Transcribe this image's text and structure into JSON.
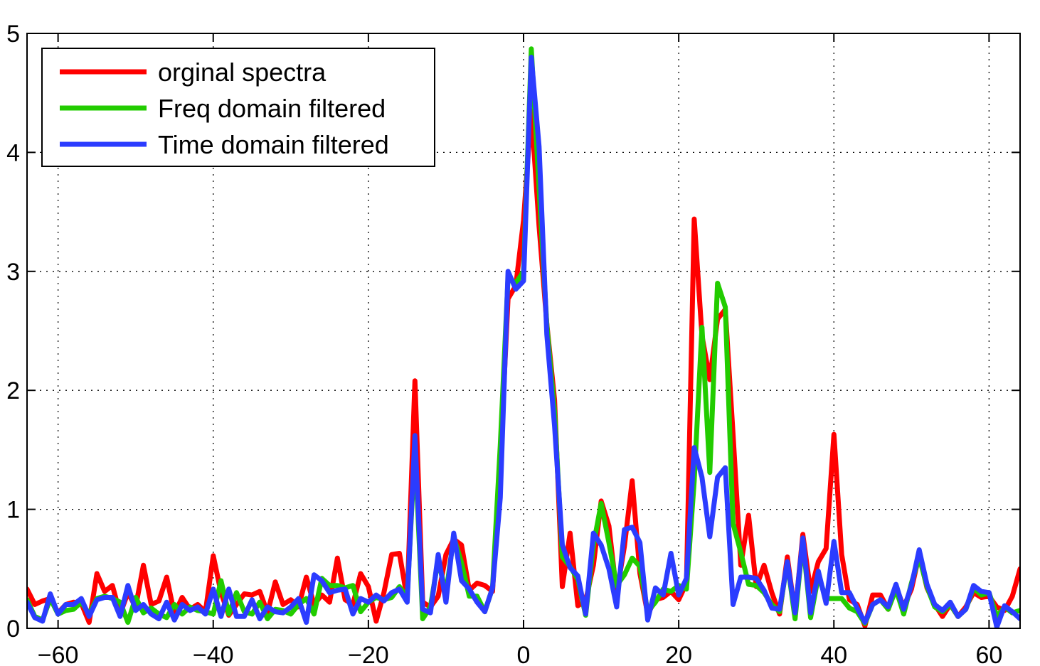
{
  "chart_data": {
    "type": "line",
    "title": "",
    "xlabel": "",
    "ylabel": "",
    "xlim": [
      -64,
      64
    ],
    "ylim": [
      0,
      5
    ],
    "xticks": [
      -60,
      -40,
      -20,
      0,
      20,
      40,
      60
    ],
    "xtick_labels": [
      "−60",
      "−40",
      "−20",
      "0",
      "20",
      "40",
      "60"
    ],
    "yticks": [
      0,
      1,
      2,
      3,
      4,
      5
    ],
    "ytick_labels": [
      "0",
      "1",
      "2",
      "3",
      "4",
      "5"
    ],
    "grid": true,
    "legend_position": "top-left",
    "series": [
      {
        "name": "orginal spectra",
        "color": "#ff0000",
        "x": [
          -64,
          -63,
          -62,
          -61,
          -60,
          -59,
          -58,
          -57,
          -56,
          -55,
          -54,
          -53,
          -52,
          -51,
          -50,
          -49,
          -48,
          -47,
          -46,
          -45,
          -44,
          -43,
          -42,
          -41,
          -40,
          -39,
          -38,
          -37,
          -36,
          -35,
          -34,
          -33,
          -32,
          -31,
          -30,
          -29,
          -28,
          -27,
          -26,
          -25,
          -24,
          -23,
          -22,
          -21,
          -20,
          -19,
          -18,
          -17,
          -16,
          -15,
          -14,
          -13,
          -12,
          -11,
          -10,
          -9,
          -8,
          -7,
          -6,
          -5,
          -4,
          -3,
          -2,
          -1,
          0,
          1,
          2,
          3,
          4,
          5,
          6,
          7,
          8,
          9,
          10,
          11,
          12,
          13,
          14,
          15,
          16,
          17,
          18,
          19,
          20,
          21,
          22,
          23,
          24,
          25,
          26,
          27,
          28,
          29,
          30,
          31,
          32,
          33,
          34,
          35,
          36,
          37,
          38,
          39,
          40,
          41,
          42,
          43,
          44,
          45,
          46,
          47,
          48,
          49,
          50,
          51,
          52,
          53,
          54,
          55,
          56,
          57,
          58,
          59,
          60,
          61,
          62,
          63,
          64
        ],
        "y": [
          0.33,
          0.2,
          0.23,
          0.25,
          0.13,
          0.2,
          0.22,
          0.21,
          0.05,
          0.46,
          0.31,
          0.36,
          0.12,
          0.3,
          0.18,
          0.53,
          0.2,
          0.23,
          0.43,
          0.12,
          0.26,
          0.16,
          0.2,
          0.14,
          0.61,
          0.3,
          0.11,
          0.2,
          0.29,
          0.28,
          0.31,
          0.13,
          0.39,
          0.2,
          0.24,
          0.18,
          0.43,
          0.2,
          0.28,
          0.22,
          0.59,
          0.24,
          0.2,
          0.46,
          0.35,
          0.06,
          0.3,
          0.62,
          0.63,
          0.25,
          2.08,
          0.22,
          0.18,
          0.27,
          0.62,
          0.75,
          0.7,
          0.32,
          0.38,
          0.36,
          0.31,
          1.41,
          2.77,
          2.88,
          3.43,
          4.35,
          3.38,
          2.56,
          1.92,
          0.35,
          0.8,
          0.19,
          0.23,
          0.53,
          1.07,
          0.86,
          0.29,
          0.69,
          1.24,
          0.46,
          0.12,
          0.24,
          0.26,
          0.31,
          0.24,
          0.38,
          3.44,
          2.46,
          2.09,
          2.6,
          2.68,
          1.63,
          0.53,
          0.95,
          0.35,
          0.53,
          0.3,
          0.12,
          0.6,
          0.12,
          0.79,
          0.31,
          0.56,
          0.67,
          1.63,
          0.62,
          0.24,
          0.2,
          0.02,
          0.28,
          0.28,
          0.16,
          0.35,
          0.18,
          0.33,
          0.62,
          0.34,
          0.2,
          0.1,
          0.2,
          0.1,
          0.18,
          0.3,
          0.26,
          0.27,
          0.18,
          0.15,
          0.27,
          0.5
        ]
      },
      {
        "name": "Freq domain filtered",
        "color": "#22cc00",
        "x": [
          -64,
          -63,
          -62,
          -61,
          -60,
          -59,
          -58,
          -57,
          -56,
          -55,
          -54,
          -53,
          -52,
          -51,
          -50,
          -49,
          -48,
          -47,
          -46,
          -45,
          -44,
          -43,
          -42,
          -41,
          -40,
          -39,
          -38,
          -37,
          -36,
          -35,
          -34,
          -33,
          -32,
          -31,
          -30,
          -29,
          -28,
          -27,
          -26,
          -25,
          -24,
          -23,
          -22,
          -21,
          -20,
          -19,
          -18,
          -17,
          -16,
          -15,
          -14,
          -13,
          -12,
          -11,
          -10,
          -9,
          -8,
          -7,
          -6,
          -5,
          -4,
          -3,
          -2,
          -1,
          0,
          1,
          2,
          3,
          4,
          5,
          6,
          7,
          8,
          9,
          10,
          11,
          12,
          13,
          14,
          15,
          16,
          17,
          18,
          19,
          20,
          21,
          22,
          23,
          24,
          25,
          26,
          27,
          28,
          29,
          30,
          31,
          32,
          33,
          34,
          35,
          36,
          37,
          38,
          39,
          40,
          41,
          42,
          43,
          44,
          45,
          46,
          47,
          48,
          49,
          50,
          51,
          52,
          53,
          54,
          55,
          56,
          57,
          58,
          59,
          60,
          61,
          62,
          63,
          64
        ],
        "y": [
          0.24,
          0.1,
          0.07,
          0.25,
          0.12,
          0.15,
          0.16,
          0.22,
          0.12,
          0.25,
          0.27,
          0.25,
          0.22,
          0.05,
          0.26,
          0.13,
          0.17,
          0.12,
          0.09,
          0.2,
          0.12,
          0.18,
          0.15,
          0.14,
          0.12,
          0.4,
          0.12,
          0.3,
          0.14,
          0.12,
          0.22,
          0.08,
          0.16,
          0.15,
          0.12,
          0.2,
          0.25,
          0.12,
          0.42,
          0.36,
          0.36,
          0.34,
          0.36,
          0.14,
          0.22,
          0.26,
          0.24,
          0.26,
          0.35,
          0.26,
          1.52,
          0.08,
          0.18,
          0.58,
          0.29,
          0.77,
          0.55,
          0.27,
          0.27,
          0.14,
          0.34,
          1.54,
          2.95,
          2.9,
          3.0,
          4.87,
          3.7,
          2.55,
          1.82,
          0.6,
          0.52,
          0.41,
          0.11,
          0.7,
          1.05,
          0.72,
          0.36,
          0.45,
          0.59,
          0.52,
          0.14,
          0.22,
          0.33,
          0.31,
          0.36,
          0.33,
          1.24,
          2.53,
          1.31,
          2.9,
          2.7,
          0.88,
          0.64,
          0.37,
          0.36,
          0.3,
          0.2,
          0.14,
          0.56,
          0.08,
          0.74,
          0.09,
          0.44,
          0.25,
          0.25,
          0.25,
          0.17,
          0.14,
          0.04,
          0.2,
          0.24,
          0.16,
          0.33,
          0.12,
          0.38,
          0.6,
          0.35,
          0.18,
          0.14,
          0.2,
          0.1,
          0.16,
          0.34,
          0.28,
          0.3,
          0.1,
          0.18,
          0.13,
          0.15
        ]
      },
      {
        "name": "Time domain filtered",
        "color": "#2b3cff",
        "x": [
          -64,
          -63,
          -62,
          -61,
          -60,
          -59,
          -58,
          -57,
          -56,
          -55,
          -54,
          -53,
          -52,
          -51,
          -50,
          -49,
          -48,
          -47,
          -46,
          -45,
          -44,
          -43,
          -42,
          -41,
          -40,
          -39,
          -38,
          -37,
          -36,
          -35,
          -34,
          -33,
          -32,
          -31,
          -30,
          -29,
          -28,
          -27,
          -26,
          -25,
          -24,
          -23,
          -22,
          -21,
          -20,
          -19,
          -18,
          -17,
          -16,
          -15,
          -14,
          -13,
          -12,
          -11,
          -10,
          -9,
          -8,
          -7,
          -6,
          -5,
          -4,
          -3,
          -2,
          -1,
          0,
          1,
          2,
          3,
          4,
          5,
          6,
          7,
          8,
          9,
          10,
          11,
          12,
          13,
          14,
          15,
          16,
          17,
          18,
          19,
          20,
          21,
          22,
          23,
          24,
          25,
          26,
          27,
          28,
          29,
          30,
          31,
          32,
          33,
          34,
          35,
          36,
          37,
          38,
          39,
          40,
          41,
          42,
          43,
          44,
          45,
          46,
          47,
          48,
          49,
          50,
          51,
          52,
          53,
          54,
          55,
          56,
          57,
          58,
          59,
          60,
          61,
          62,
          63,
          64
        ],
        "y": [
          0.22,
          0.09,
          0.06,
          0.29,
          0.12,
          0.2,
          0.2,
          0.25,
          0.1,
          0.24,
          0.26,
          0.26,
          0.1,
          0.36,
          0.15,
          0.2,
          0.12,
          0.08,
          0.22,
          0.07,
          0.2,
          0.15,
          0.18,
          0.12,
          0.33,
          0.1,
          0.33,
          0.1,
          0.1,
          0.24,
          0.08,
          0.18,
          0.14,
          0.13,
          0.18,
          0.25,
          0.05,
          0.45,
          0.4,
          0.3,
          0.32,
          0.33,
          0.12,
          0.25,
          0.22,
          0.28,
          0.23,
          0.3,
          0.33,
          0.22,
          1.62,
          0.16,
          0.13,
          0.62,
          0.22,
          0.8,
          0.4,
          0.33,
          0.22,
          0.14,
          0.34,
          1.1,
          3.0,
          2.85,
          2.92,
          4.8,
          4.05,
          2.47,
          1.7,
          0.7,
          0.51,
          0.44,
          0.12,
          0.8,
          0.7,
          0.5,
          0.18,
          0.83,
          0.85,
          0.72,
          0.07,
          0.34,
          0.28,
          0.63,
          0.28,
          0.42,
          1.52,
          1.27,
          0.77,
          1.27,
          1.35,
          0.2,
          0.43,
          0.43,
          0.42,
          0.32,
          0.17,
          0.16,
          0.56,
          0.13,
          0.76,
          0.13,
          0.48,
          0.21,
          0.73,
          0.3,
          0.3,
          0.17,
          0.05,
          0.2,
          0.24,
          0.18,
          0.37,
          0.16,
          0.36,
          0.66,
          0.37,
          0.2,
          0.15,
          0.22,
          0.1,
          0.16,
          0.36,
          0.31,
          0.3,
          0.01,
          0.19,
          0.14,
          0.08
        ]
      }
    ]
  }
}
